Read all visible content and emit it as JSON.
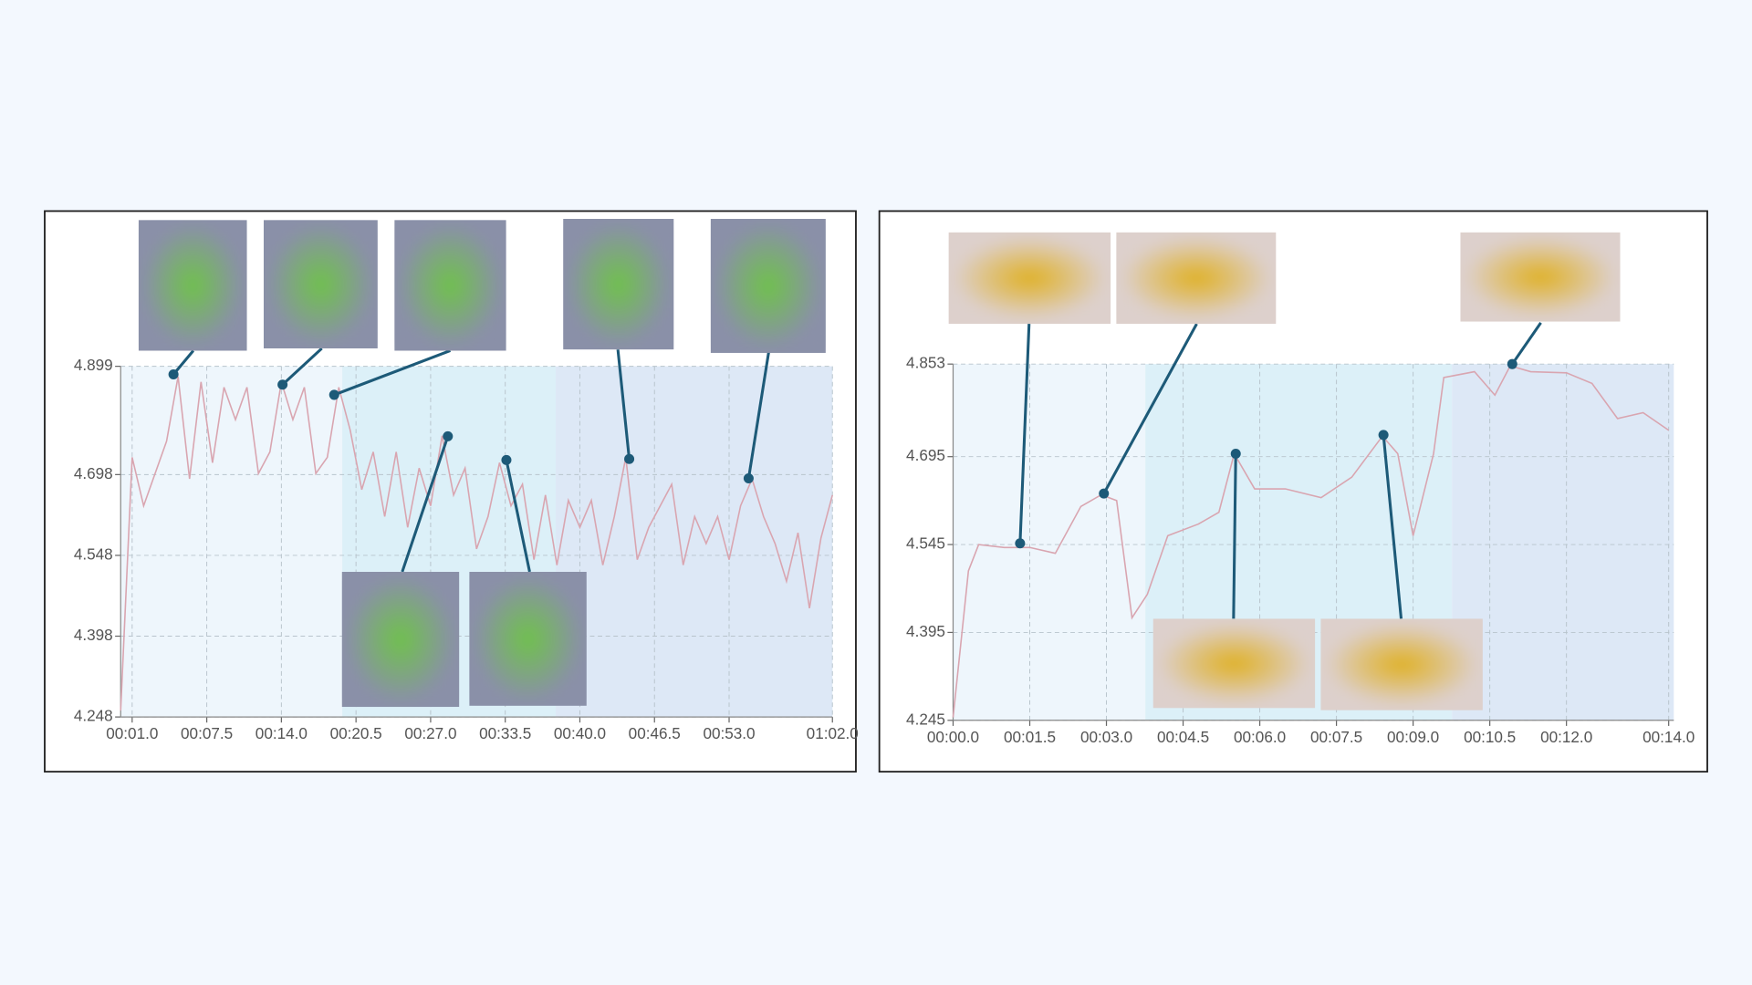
{
  "chart_data": [
    {
      "type": "line",
      "color": "#d9a5b0",
      "annotation_color": "#1d5a78",
      "thumbnail_tint": "#6fc24a",
      "grid": true,
      "x": [
        0,
        1,
        2,
        3,
        4,
        5,
        6,
        7,
        8,
        9,
        10,
        11,
        12,
        13,
        14,
        15,
        16,
        17,
        18,
        19,
        20,
        21,
        22,
        23,
        24,
        25,
        26,
        27,
        28,
        29,
        30,
        31,
        32,
        33,
        34,
        35,
        36,
        37,
        38,
        39,
        40,
        41,
        42,
        43,
        44,
        45,
        46,
        47,
        48,
        49,
        50,
        51,
        52,
        53,
        54,
        55,
        56,
        57,
        58,
        59,
        60,
        61,
        62
      ],
      "values": [
        4.26,
        4.73,
        4.64,
        4.7,
        4.76,
        4.88,
        4.69,
        4.87,
        4.72,
        4.86,
        4.8,
        4.86,
        4.7,
        4.74,
        4.87,
        4.8,
        4.86,
        4.7,
        4.73,
        4.86,
        4.78,
        4.67,
        4.74,
        4.62,
        4.74,
        4.6,
        4.71,
        4.64,
        4.77,
        4.66,
        4.71,
        4.56,
        4.62,
        4.72,
        4.64,
        4.68,
        4.54,
        4.66,
        4.53,
        4.65,
        4.6,
        4.65,
        4.53,
        4.62,
        4.73,
        4.54,
        4.6,
        4.64,
        4.68,
        4.53,
        4.62,
        4.57,
        4.62,
        4.54,
        4.64,
        4.69,
        4.62,
        4.57,
        4.5,
        4.59,
        4.45,
        4.58,
        4.66
      ],
      "xlim": [
        0,
        62
      ],
      "xticks": [
        {
          "value": 1,
          "label": "00:01.0"
        },
        {
          "value": 7.5,
          "label": "00:07.5"
        },
        {
          "value": 14,
          "label": "00:14.0"
        },
        {
          "value": 20.5,
          "label": "00:20.5"
        },
        {
          "value": 27,
          "label": "00:27.0"
        },
        {
          "value": 33.5,
          "label": "00:33.5"
        },
        {
          "value": 40,
          "label": "00:40.0"
        },
        {
          "value": 46.5,
          "label": "00:46.5"
        },
        {
          "value": 53,
          "label": "00:53.0"
        },
        {
          "value": 62,
          "label": "01:02.0"
        }
      ],
      "ylim": [
        4.248,
        4.899
      ],
      "yticks": [
        4.248,
        4.398,
        4.548,
        4.698,
        4.899
      ],
      "regions": [
        {
          "start": 0,
          "end": 19.3,
          "color": "#eef6fc"
        },
        {
          "start": 19.3,
          "end": 37.9,
          "color": "#dcf0f8"
        },
        {
          "start": 37.9,
          "end": 62,
          "color": "#dde8f6"
        }
      ],
      "annotations": [
        {
          "x": 4.6,
          "y": 4.884
        },
        {
          "x": 14.1,
          "y": 4.865
        },
        {
          "x": 18.6,
          "y": 4.846
        },
        {
          "x": 28.5,
          "y": 4.769
        },
        {
          "x": 33.6,
          "y": 4.725
        },
        {
          "x": 44.3,
          "y": 4.727
        },
        {
          "x": 54.7,
          "y": 4.691
        }
      ]
    },
    {
      "type": "line",
      "color": "#d9a5b0",
      "annotation_color": "#1d5a78",
      "thumbnail_tint": "#e0b020",
      "grid": true,
      "x": [
        0,
        0.3,
        0.5,
        1,
        1.5,
        2,
        2.5,
        2.9,
        3.2,
        3.5,
        3.8,
        4.2,
        4.8,
        5.2,
        5.5,
        5.9,
        6.5,
        7.2,
        7.8,
        8.4,
        8.7,
        9.0,
        9.4,
        9.6,
        10.2,
        10.6,
        10.9,
        11.3,
        12,
        12.5,
        13.0,
        13.5,
        14.0
      ],
      "values": [
        4.25,
        4.5,
        4.545,
        4.54,
        4.54,
        4.53,
        4.61,
        4.63,
        4.62,
        4.42,
        4.46,
        4.56,
        4.58,
        4.6,
        4.7,
        4.64,
        4.64,
        4.625,
        4.66,
        4.73,
        4.7,
        4.56,
        4.7,
        4.83,
        4.84,
        4.8,
        4.85,
        4.84,
        4.838,
        4.82,
        4.76,
        4.77,
        4.74
      ],
      "xlim": [
        0,
        14.1
      ],
      "xticks": [
        {
          "value": 0,
          "label": "00:00.0"
        },
        {
          "value": 1.5,
          "label": "00:01.5"
        },
        {
          "value": 3,
          "label": "00:03.0"
        },
        {
          "value": 4.5,
          "label": "00:04.5"
        },
        {
          "value": 6,
          "label": "00:06.0"
        },
        {
          "value": 7.5,
          "label": "00:07.5"
        },
        {
          "value": 9,
          "label": "00:09.0"
        },
        {
          "value": 10.5,
          "label": "00:10.5"
        },
        {
          "value": 12,
          "label": "00:12.0"
        },
        {
          "value": 14,
          "label": "00:14.0"
        }
      ],
      "ylim": [
        4.245,
        4.853
      ],
      "yticks": [
        4.245,
        4.395,
        4.545,
        4.695,
        4.853
      ],
      "regions": [
        {
          "start": 0,
          "end": 3.76,
          "color": "#eef6fc"
        },
        {
          "start": 3.76,
          "end": 9.76,
          "color": "#dcf0f8"
        },
        {
          "start": 9.76,
          "end": 14.1,
          "color": "#dde8f6"
        }
      ],
      "annotations": [
        {
          "x": 1.31,
          "y": 4.547
        },
        {
          "x": 2.95,
          "y": 4.632
        },
        {
          "x": 5.53,
          "y": 4.7
        },
        {
          "x": 8.42,
          "y": 4.732
        },
        {
          "x": 10.94,
          "y": 4.853
        }
      ]
    }
  ]
}
